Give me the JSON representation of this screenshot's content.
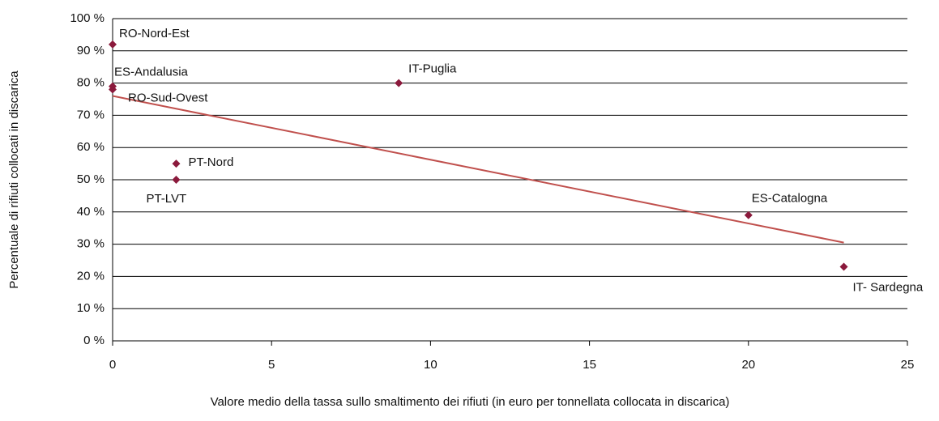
{
  "chart_data": {
    "type": "scatter",
    "xlabel": "Valore medio della tassa sullo smaltimento dei rifiuti (in euro per tonnellata collocata in discarica)",
    "ylabel": "Percentuale di rifiuti collocati in discarica",
    "x": [
      0,
      0,
      0,
      9,
      2,
      2,
      20,
      23
    ],
    "values": [
      92,
      79,
      78,
      80,
      55,
      50,
      39,
      23
    ],
    "labels": [
      "RO-Nord-Est",
      "ES-Andalusia",
      "RO-Sud-Ovest",
      "IT-Puglia",
      "PT-Nord",
      "PT-LVT",
      "ES-Catalogna",
      "IT- Sardegna"
    ],
    "color": "#8b1a3c",
    "trend": {
      "x": [
        0,
        23
      ],
      "values": [
        76,
        30.5
      ],
      "color": "#c0504d"
    },
    "xlim": [
      0,
      25
    ],
    "xticks": [
      0,
      5,
      10,
      15,
      20,
      25
    ],
    "ylim": [
      0,
      100
    ],
    "yticks": [
      {
        "value": 0,
        "label": "0 %"
      },
      {
        "value": 10,
        "label": "10 %"
      },
      {
        "value": 20,
        "label": "20 %"
      },
      {
        "value": 30,
        "label": "30 %"
      },
      {
        "value": 40,
        "label": "40 %"
      },
      {
        "value": 50,
        "label": "50 %"
      },
      {
        "value": 60,
        "label": "60 %"
      },
      {
        "value": 70,
        "label": "70 %"
      },
      {
        "value": 80,
        "label": "80 %"
      },
      {
        "value": 90,
        "label": "90 %"
      },
      {
        "value": 100,
        "label": "100 %"
      }
    ],
    "grid": true
  }
}
